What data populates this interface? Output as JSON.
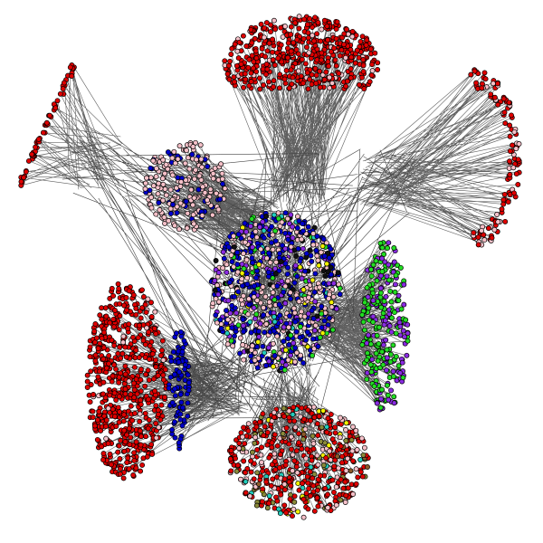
{
  "diagram": {
    "type": "network-graph",
    "edge_color": "#444444",
    "node_stroke": "#000000",
    "palette": {
      "red": "#e00000",
      "pink": "#f5c0c8",
      "blue": "#0000cc",
      "green": "#22dd22",
      "purple": "#8a2be2",
      "yellow": "#f0f000",
      "cyan": "#22ccbb",
      "black": "#111111",
      "olive": "#8a8a3a",
      "orange": "#ff9900",
      "brown": "#8b5a2b"
    },
    "clusters": [
      {
        "name": "top-red-cluster",
        "colors": [
          "red",
          "pink"
        ]
      },
      {
        "name": "top-left-red-cluster",
        "colors": [
          "red",
          "pink"
        ]
      },
      {
        "name": "right-red-cluster",
        "colors": [
          "red",
          "pink"
        ]
      },
      {
        "name": "pink-blue-cluster",
        "colors": [
          "pink",
          "blue"
        ]
      },
      {
        "name": "central-mixed-cluster",
        "colors": [
          "blue",
          "pink",
          "purple",
          "green",
          "yellow",
          "black",
          "cyan"
        ]
      },
      {
        "name": "right-green-purple-cluster",
        "colors": [
          "green",
          "purple"
        ]
      },
      {
        "name": "left-red-cluster",
        "colors": [
          "red",
          "pink"
        ]
      },
      {
        "name": "left-blue-cluster",
        "colors": [
          "blue"
        ]
      },
      {
        "name": "bottom-mixed-cluster",
        "colors": [
          "red",
          "pink",
          "olive",
          "yellow",
          "cyan",
          "brown"
        ]
      }
    ]
  }
}
